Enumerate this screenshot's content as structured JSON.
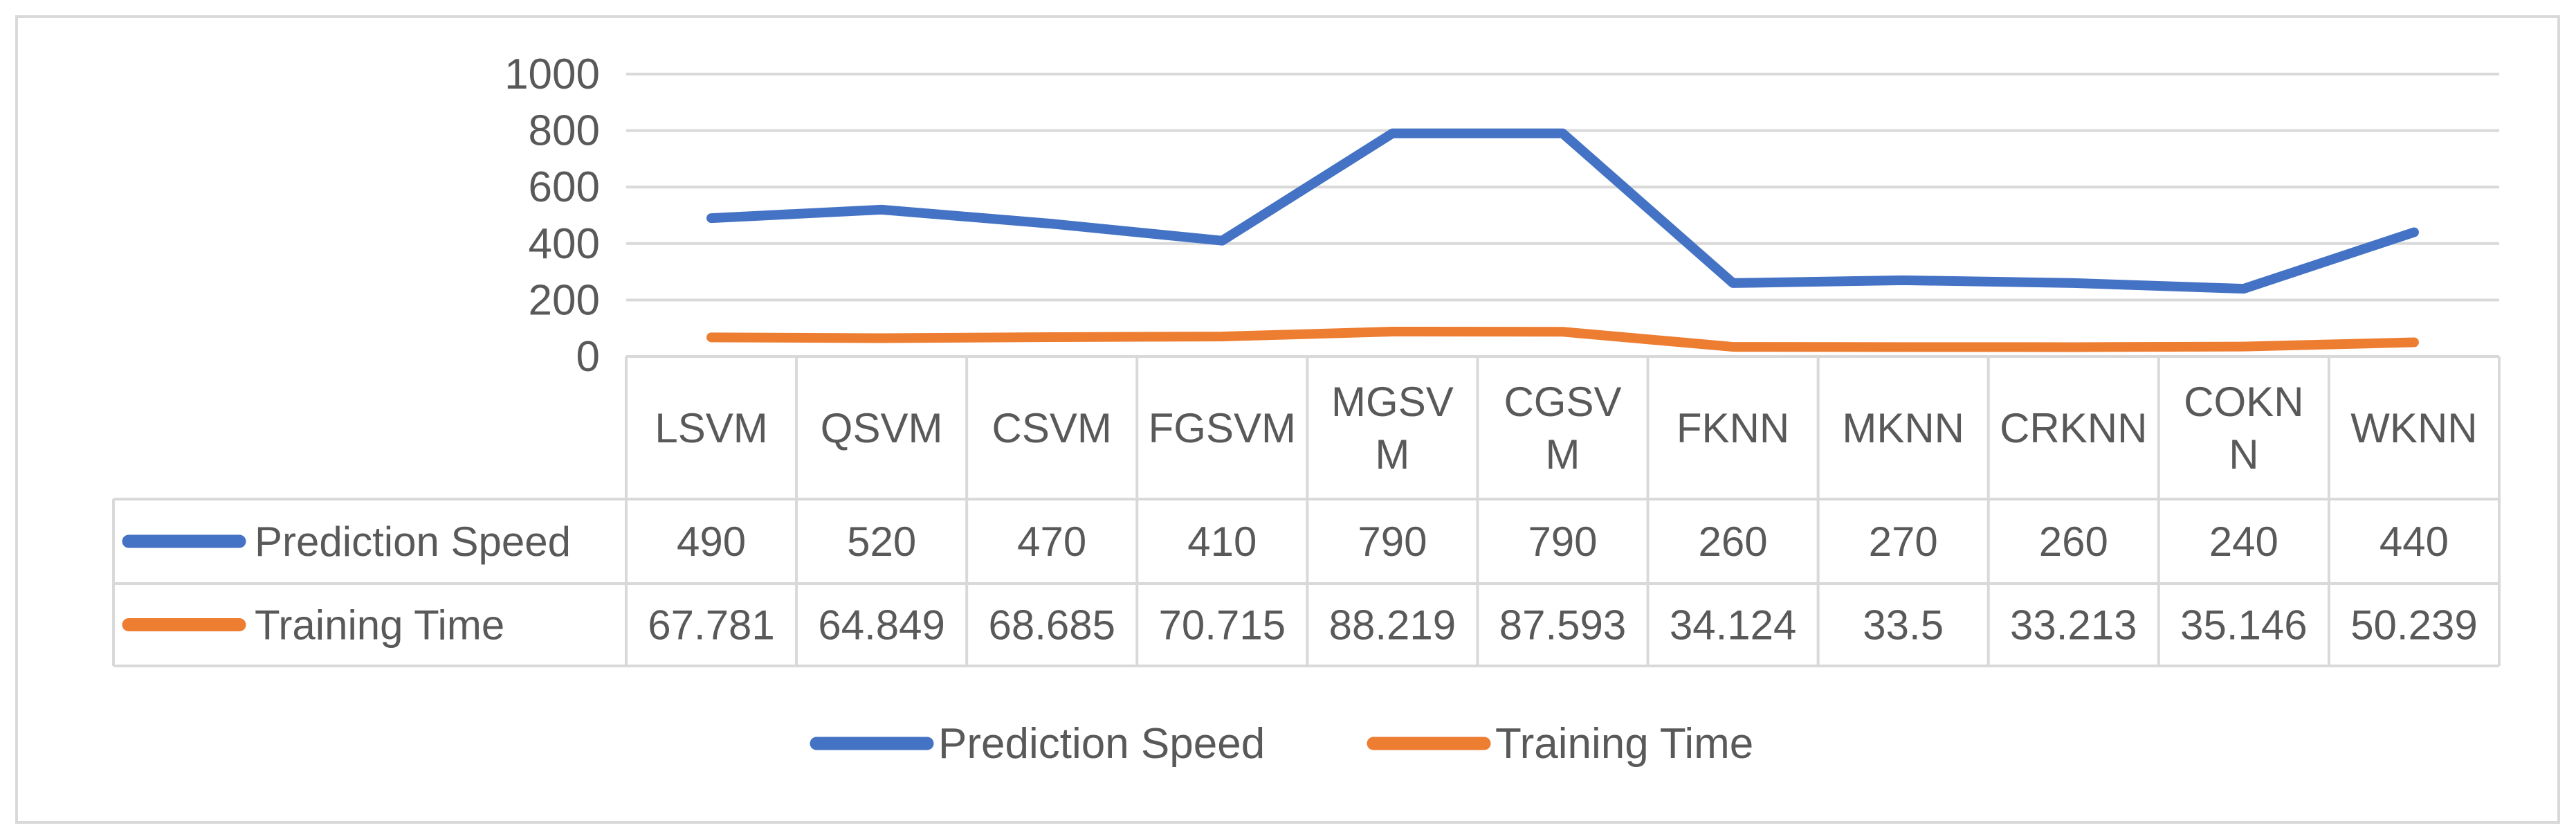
{
  "chart_data": {
    "type": "line",
    "categories": [
      "LSVM",
      "QSVM",
      "CSVM",
      "FGSVM",
      "MGSVM",
      "CGSVM",
      "FKNN",
      "MKNN",
      "CRKNN",
      "COKNN",
      "WKNN"
    ],
    "category_lines": [
      [
        "LSVM"
      ],
      [
        "QSVM"
      ],
      [
        "CSVM"
      ],
      [
        "FGSVM"
      ],
      [
        "MGSV",
        "M"
      ],
      [
        "CGSV",
        "M"
      ],
      [
        "FKNN"
      ],
      [
        "MKNN"
      ],
      [
        "CRKNN"
      ],
      [
        "COKN",
        "N"
      ],
      [
        "WKNN"
      ]
    ],
    "series": [
      {
        "name": "Prediction Speed",
        "color": "#4472C4",
        "values": [
          490,
          520,
          470,
          410,
          790,
          790,
          260,
          270,
          260,
          240,
          440
        ],
        "value_labels": [
          "490",
          "520",
          "470",
          "410",
          "790",
          "790",
          "260",
          "270",
          "260",
          "240",
          "440"
        ]
      },
      {
        "name": "Training Time",
        "color": "#ED7D31",
        "values": [
          67.781,
          64.849,
          68.685,
          70.715,
          88.219,
          87.593,
          34.124,
          33.5,
          33.213,
          35.146,
          50.239
        ],
        "value_labels": [
          "67.781",
          "64.849",
          "68.685",
          "70.715",
          "88.219",
          "87.593",
          "34.124",
          "33.5",
          "33.213",
          "35.146",
          "50.239"
        ]
      }
    ],
    "yticks": [
      "0",
      "200",
      "400",
      "600",
      "800",
      "1000"
    ],
    "ylim": [
      0,
      1000
    ],
    "grid": true,
    "data_table": true,
    "legend": "bottom-center"
  }
}
